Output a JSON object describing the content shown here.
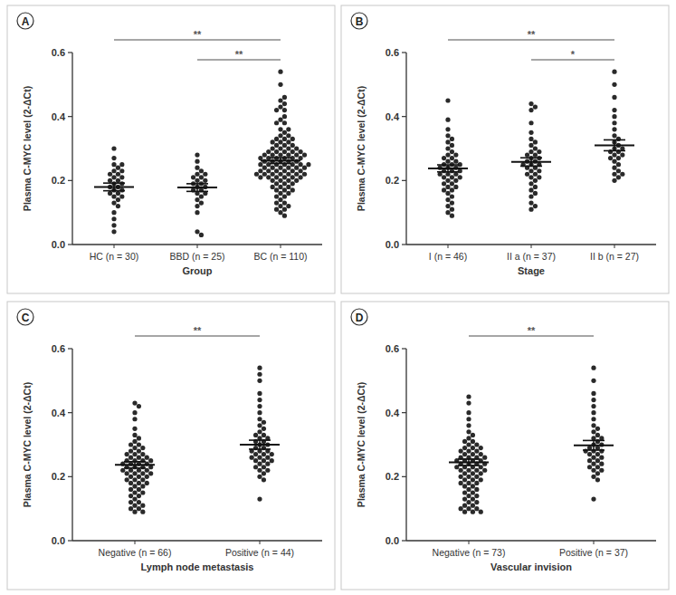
{
  "chart_data": [
    {
      "type": "dot_plot",
      "title": "A",
      "x_label": "Group",
      "y_label": "Plasma C-MYC level (2-ΔCt)",
      "categories": [
        "HC (n = 30)",
        "BBD (n = 25)",
        "BC (n = 110)"
      ],
      "values": [
        [
          0.3,
          0.27,
          0.25,
          0.25,
          0.24,
          0.23,
          0.23,
          0.22,
          0.22,
          0.21,
          0.21,
          0.2,
          0.2,
          0.19,
          0.19,
          0.18,
          0.18,
          0.17,
          0.17,
          0.16,
          0.16,
          0.15,
          0.15,
          0.14,
          0.13,
          0.12,
          0.1,
          0.08,
          0.06,
          0.04
        ],
        [
          0.28,
          0.26,
          0.24,
          0.23,
          0.22,
          0.22,
          0.21,
          0.21,
          0.2,
          0.2,
          0.19,
          0.19,
          0.18,
          0.18,
          0.17,
          0.17,
          0.16,
          0.16,
          0.15,
          0.14,
          0.13,
          0.12,
          0.1,
          0.04,
          0.03
        ],
        [
          0.45,
          0.39,
          0.36,
          0.34,
          0.33,
          0.32,
          0.31,
          0.3,
          0.29,
          0.28,
          0.28,
          0.27,
          0.27,
          0.26,
          0.26,
          0.25,
          0.25,
          0.25,
          0.24,
          0.24,
          0.24,
          0.23,
          0.23,
          0.23,
          0.22,
          0.22,
          0.22,
          0.21,
          0.21,
          0.21,
          0.2,
          0.2,
          0.19,
          0.19,
          0.18,
          0.18,
          0.17,
          0.17,
          0.16,
          0.15,
          0.14,
          0.13,
          0.12,
          0.11,
          0.1,
          0.09,
          0.44,
          0.43,
          0.42,
          0.38,
          0.35,
          0.33,
          0.32,
          0.31,
          0.3,
          0.29,
          0.29,
          0.28,
          0.28,
          0.27,
          0.27,
          0.26,
          0.26,
          0.25,
          0.25,
          0.25,
          0.24,
          0.24,
          0.23,
          0.23,
          0.22,
          0.22,
          0.21,
          0.21,
          0.2,
          0.19,
          0.18,
          0.17,
          0.16,
          0.15,
          0.13,
          0.12,
          0.11,
          0.54,
          0.5,
          0.46,
          0.42,
          0.4,
          0.38,
          0.36,
          0.34,
          0.33,
          0.32,
          0.31,
          0.3,
          0.3,
          0.29,
          0.29,
          0.28,
          0.28,
          0.27,
          0.27,
          0.26,
          0.25,
          0.24,
          0.23,
          0.22,
          0.22,
          0.21,
          0.2
        ]
      ],
      "means": [
        0.18,
        0.178,
        0.262
      ],
      "errors": [
        0.012,
        0.012,
        0.009
      ],
      "annotations": [
        {
          "text": "**",
          "between": [
            "HC (n = 30)",
            "BC (n = 110)"
          ]
        },
        {
          "text": "**",
          "between": [
            "BBD (n = 25)",
            "BC (n = 110)"
          ]
        }
      ],
      "ylim": [
        0,
        0.6
      ],
      "yticks": [
        {
          "value": 0,
          "label": "0.0"
        },
        0.2,
        0.4,
        0.6
      ],
      "color": "#2a2a2a",
      "marker": "circle"
    },
    {
      "type": "dot_plot",
      "title": "B",
      "x_label": "Stage",
      "y_label": "Plasma C-MYC level (2-ΔCt)",
      "categories": [
        "I (n = 46)",
        "II a (n = 37)",
        "II b (n = 27)"
      ],
      "values": [
        [
          0.45,
          0.39,
          0.36,
          0.34,
          0.33,
          0.32,
          0.31,
          0.3,
          0.29,
          0.28,
          0.28,
          0.27,
          0.27,
          0.26,
          0.26,
          0.25,
          0.25,
          0.25,
          0.24,
          0.24,
          0.24,
          0.23,
          0.23,
          0.23,
          0.22,
          0.22,
          0.22,
          0.21,
          0.21,
          0.21,
          0.2,
          0.2,
          0.19,
          0.19,
          0.18,
          0.18,
          0.17,
          0.17,
          0.16,
          0.15,
          0.14,
          0.13,
          0.12,
          0.11,
          0.1,
          0.09
        ],
        [
          0.44,
          0.43,
          0.42,
          0.38,
          0.35,
          0.33,
          0.32,
          0.31,
          0.3,
          0.29,
          0.29,
          0.28,
          0.28,
          0.27,
          0.27,
          0.26,
          0.26,
          0.25,
          0.25,
          0.25,
          0.24,
          0.24,
          0.23,
          0.23,
          0.22,
          0.22,
          0.21,
          0.21,
          0.2,
          0.19,
          0.18,
          0.17,
          0.16,
          0.15,
          0.13,
          0.12,
          0.11
        ],
        [
          0.54,
          0.5,
          0.46,
          0.42,
          0.4,
          0.38,
          0.36,
          0.34,
          0.33,
          0.32,
          0.31,
          0.3,
          0.3,
          0.29,
          0.29,
          0.28,
          0.28,
          0.27,
          0.27,
          0.26,
          0.25,
          0.24,
          0.23,
          0.22,
          0.22,
          0.21,
          0.2
        ]
      ],
      "means": [
        0.238,
        0.258,
        0.31
      ],
      "errors": [
        0.011,
        0.013,
        0.017
      ],
      "annotations": [
        {
          "text": "**",
          "between": [
            "I (n = 46)",
            "II b (n = 27)"
          ]
        },
        {
          "text": "*",
          "between": [
            "II a (n = 37)",
            "II b (n = 27)"
          ]
        }
      ],
      "ylim": [
        0,
        0.6
      ],
      "yticks": [
        {
          "value": 0,
          "label": "0.0"
        },
        0.2,
        0.4,
        0.6
      ],
      "color": "#2a2a2a",
      "marker": "circle"
    },
    {
      "type": "dot_plot",
      "title": "C",
      "x_label": "Lymph node metastasis",
      "y_label": "Plasma C-MYC level (2-ΔCt)",
      "categories": [
        "Negative (n = 66)",
        "Positive (n = 44)"
      ],
      "values": [
        [
          0.43,
          0.42,
          0.4,
          0.38,
          0.35,
          0.33,
          0.32,
          0.31,
          0.3,
          0.3,
          0.29,
          0.29,
          0.28,
          0.28,
          0.27,
          0.27,
          0.27,
          0.26,
          0.26,
          0.26,
          0.25,
          0.25,
          0.25,
          0.25,
          0.24,
          0.24,
          0.24,
          0.24,
          0.23,
          0.23,
          0.23,
          0.23,
          0.22,
          0.22,
          0.22,
          0.22,
          0.21,
          0.21,
          0.21,
          0.21,
          0.2,
          0.2,
          0.2,
          0.19,
          0.19,
          0.19,
          0.18,
          0.18,
          0.18,
          0.17,
          0.17,
          0.16,
          0.16,
          0.15,
          0.15,
          0.14,
          0.14,
          0.13,
          0.12,
          0.12,
          0.11,
          0.11,
          0.1,
          0.1,
          0.09,
          0.09
        ],
        [
          0.54,
          0.52,
          0.5,
          0.46,
          0.44,
          0.42,
          0.4,
          0.38,
          0.37,
          0.36,
          0.35,
          0.34,
          0.33,
          0.33,
          0.32,
          0.32,
          0.31,
          0.31,
          0.3,
          0.3,
          0.29,
          0.29,
          0.28,
          0.28,
          0.28,
          0.27,
          0.27,
          0.27,
          0.26,
          0.26,
          0.26,
          0.25,
          0.25,
          0.25,
          0.24,
          0.24,
          0.23,
          0.23,
          0.22,
          0.22,
          0.21,
          0.2,
          0.19,
          0.13
        ]
      ],
      "means": [
        0.237,
        0.3
      ],
      "errors": [
        0.01,
        0.014
      ],
      "annotations": [
        {
          "text": "**",
          "between": [
            "Negative (n = 66)",
            "Positive (n = 44)"
          ]
        }
      ],
      "ylim": [
        0,
        0.6
      ],
      "yticks": [
        {
          "value": 0,
          "label": "0.0"
        },
        0.2,
        0.4,
        0.6
      ],
      "color": "#2a2a2a",
      "marker": "circle"
    },
    {
      "type": "dot_plot",
      "title": "D",
      "x_label": "Vascular invision",
      "y_label": "Plasma C-MYC level (2-ΔCt)",
      "categories": [
        "Negative (n = 73)",
        "Positive (n = 37)"
      ],
      "values": [
        [
          0.45,
          0.43,
          0.4,
          0.38,
          0.36,
          0.34,
          0.33,
          0.32,
          0.31,
          0.31,
          0.3,
          0.3,
          0.29,
          0.29,
          0.29,
          0.28,
          0.28,
          0.28,
          0.27,
          0.27,
          0.27,
          0.26,
          0.26,
          0.26,
          0.26,
          0.25,
          0.25,
          0.25,
          0.25,
          0.24,
          0.24,
          0.24,
          0.24,
          0.23,
          0.23,
          0.23,
          0.23,
          0.22,
          0.22,
          0.22,
          0.22,
          0.21,
          0.21,
          0.21,
          0.2,
          0.2,
          0.2,
          0.19,
          0.19,
          0.19,
          0.18,
          0.18,
          0.18,
          0.17,
          0.17,
          0.16,
          0.16,
          0.15,
          0.15,
          0.14,
          0.14,
          0.13,
          0.13,
          0.12,
          0.12,
          0.11,
          0.11,
          0.1,
          0.1,
          0.1,
          0.09,
          0.09,
          0.09
        ],
        [
          0.54,
          0.5,
          0.46,
          0.44,
          0.42,
          0.4,
          0.38,
          0.36,
          0.35,
          0.34,
          0.33,
          0.32,
          0.32,
          0.31,
          0.3,
          0.3,
          0.29,
          0.29,
          0.28,
          0.28,
          0.28,
          0.27,
          0.27,
          0.26,
          0.26,
          0.25,
          0.25,
          0.24,
          0.24,
          0.23,
          0.23,
          0.22,
          0.22,
          0.21,
          0.2,
          0.19,
          0.13
        ]
      ],
      "means": [
        0.245,
        0.298
      ],
      "errors": [
        0.01,
        0.015
      ],
      "annotations": [
        {
          "text": "**",
          "between": [
            "Negative (n = 73)",
            "Positive (n = 37)"
          ]
        }
      ],
      "ylim": [
        0,
        0.6
      ],
      "yticks": [
        {
          "value": 0,
          "label": "0.0"
        },
        0.2,
        0.4,
        0.6
      ],
      "color": "#2a2a2a",
      "marker": "circle"
    }
  ]
}
